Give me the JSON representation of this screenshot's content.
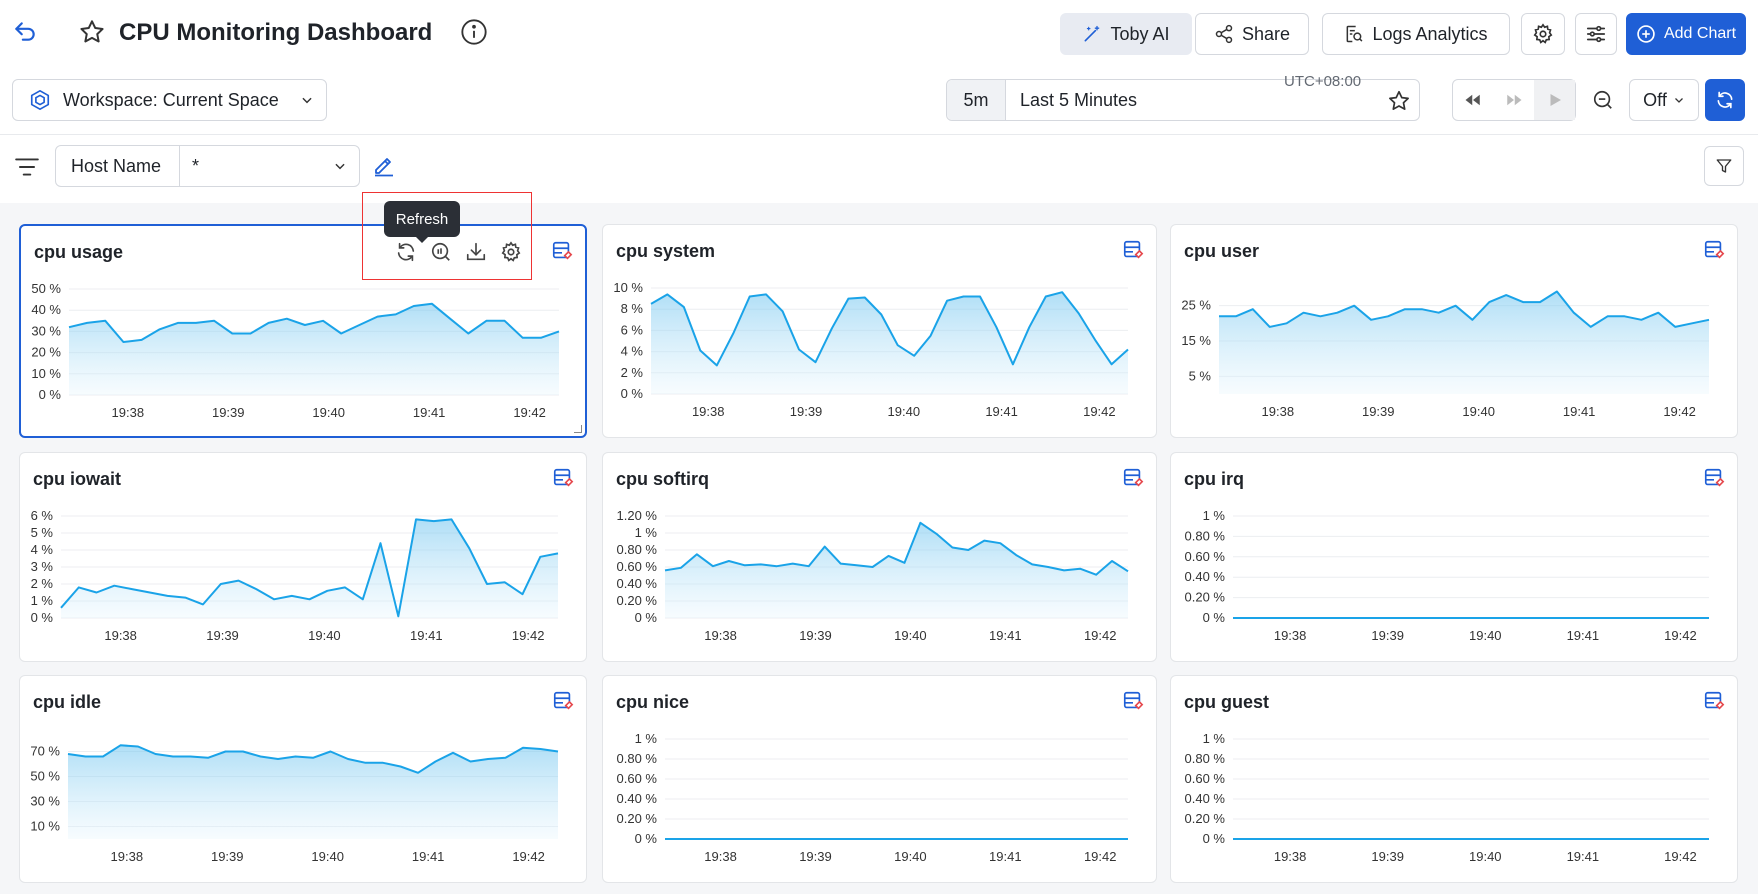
{
  "header": {
    "title": "CPU Monitoring Dashboard",
    "toby_label": "Toby AI",
    "share_label": "Share",
    "logs_label": "Logs Analytics",
    "add_chart_label": "Add Chart"
  },
  "toolbar": {
    "workspace_label": "Workspace: Current Space",
    "time_short": "5m",
    "time_label": "Last 5 Minutes",
    "timezone": "UTC+08:00",
    "auto_refresh": "Off"
  },
  "filter": {
    "field_label": "Host Name",
    "field_value": "*"
  },
  "tooltip": "Refresh",
  "colors": {
    "accent": "#1f5fd6",
    "line": "#1aa3e8",
    "highlight_box": "#e33333"
  },
  "x_ticks": [
    "19:38",
    "19:39",
    "19:40",
    "19:41",
    "19:42"
  ],
  "chart_data": [
    {
      "type": "area",
      "title": "cpu usage",
      "yticks": [
        "50 %",
        "40 %",
        "30 %",
        "20 %",
        "10 %",
        "0 %"
      ],
      "ylim": [
        0,
        50
      ],
      "values": [
        32,
        34,
        35,
        25,
        26,
        31,
        34,
        34,
        35,
        29,
        29,
        34,
        36,
        33,
        35,
        29,
        33,
        37,
        38,
        42,
        43,
        36,
        29,
        35,
        35,
        27,
        27,
        30
      ]
    },
    {
      "type": "area",
      "title": "cpu system",
      "yticks": [
        "10 %",
        "8 %",
        "6 %",
        "4 %",
        "2 %",
        "0 %"
      ],
      "ylim": [
        0,
        10
      ],
      "values": [
        8.5,
        9.4,
        8.2,
        4.1,
        2.7,
        5.7,
        9.2,
        9.4,
        7.8,
        4.2,
        3.0,
        6.2,
        9.0,
        9.1,
        7.5,
        4.6,
        3.6,
        5.5,
        8.8,
        9.2,
        9.2,
        6.3,
        2.8,
        6.3,
        9.2,
        9.6,
        7.6,
        5.1,
        2.8,
        4.2
      ]
    },
    {
      "type": "area",
      "title": "cpu user",
      "yticks": [
        "25 %",
        "15 %",
        "5 %"
      ],
      "ylim": [
        0,
        30
      ],
      "values": [
        22,
        22,
        24,
        19,
        20,
        23,
        22,
        23,
        25,
        21,
        22,
        24,
        24,
        23,
        25,
        21,
        26,
        28,
        26,
        26,
        29,
        23,
        19,
        22,
        22,
        21,
        23,
        19,
        20,
        21
      ]
    },
    {
      "type": "area",
      "title": "cpu iowait",
      "yticks": [
        "6 %",
        "5 %",
        "4 %",
        "3 %",
        "2 %",
        "1 %",
        "0 %"
      ],
      "ylim": [
        0,
        6
      ],
      "values": [
        0.6,
        1.8,
        1.5,
        1.9,
        1.7,
        1.5,
        1.3,
        1.2,
        0.8,
        2.0,
        2.2,
        1.7,
        1.1,
        1.3,
        1.1,
        1.6,
        1.8,
        1.1,
        4.4,
        0.1,
        5.8,
        5.7,
        5.8,
        4.1,
        2.0,
        2.1,
        1.4,
        3.6,
        3.8
      ]
    },
    {
      "type": "area",
      "title": "cpu softirq",
      "yticks": [
        "1.20 %",
        "1 %",
        "0.80 %",
        "0.60 %",
        "0.40 %",
        "0.20 %",
        "0 %"
      ],
      "ylim": [
        0,
        1.2
      ],
      "values": [
        0.56,
        0.59,
        0.75,
        0.61,
        0.67,
        0.62,
        0.63,
        0.61,
        0.64,
        0.61,
        0.84,
        0.64,
        0.62,
        0.6,
        0.73,
        0.65,
        1.12,
        0.99,
        0.83,
        0.8,
        0.91,
        0.88,
        0.74,
        0.63,
        0.6,
        0.56,
        0.58,
        0.51,
        0.67,
        0.55
      ]
    },
    {
      "type": "line",
      "title": "cpu irq",
      "yticks": [
        "1 %",
        "0.80 %",
        "0.60 %",
        "0.40 %",
        "0.20 %",
        "0 %"
      ],
      "ylim": [
        0,
        1
      ],
      "values": [
        0,
        0,
        0,
        0,
        0,
        0,
        0,
        0,
        0,
        0,
        0,
        0,
        0,
        0,
        0,
        0,
        0,
        0,
        0,
        0,
        0,
        0,
        0,
        0,
        0,
        0,
        0,
        0,
        0,
        0
      ]
    },
    {
      "type": "area",
      "title": "cpu idle",
      "yticks": [
        "70 %",
        "50 %",
        "30 %",
        "10 %"
      ],
      "ylim": [
        0,
        80
      ],
      "values": [
        68,
        66,
        66,
        75,
        74,
        68,
        66,
        66,
        65,
        70,
        70,
        66,
        64,
        66,
        65,
        70,
        64,
        61,
        61,
        58,
        53,
        62,
        69,
        62,
        64,
        65,
        73,
        72,
        70
      ]
    },
    {
      "type": "line",
      "title": "cpu nice",
      "yticks": [
        "1 %",
        "0.80 %",
        "0.60 %",
        "0.40 %",
        "0.20 %",
        "0 %"
      ],
      "ylim": [
        0,
        1
      ],
      "values": [
        0,
        0,
        0,
        0,
        0,
        0,
        0,
        0,
        0,
        0,
        0,
        0,
        0,
        0,
        0,
        0,
        0,
        0,
        0,
        0,
        0,
        0,
        0,
        0,
        0,
        0,
        0,
        0,
        0,
        0
      ]
    },
    {
      "type": "line",
      "title": "cpu guest",
      "yticks": [
        "1 %",
        "0.80 %",
        "0.60 %",
        "0.40 %",
        "0.20 %",
        "0 %"
      ],
      "ylim": [
        0,
        1
      ],
      "values": [
        0,
        0,
        0,
        0,
        0,
        0,
        0,
        0,
        0,
        0,
        0,
        0,
        0,
        0,
        0,
        0,
        0,
        0,
        0,
        0,
        0,
        0,
        0,
        0,
        0,
        0,
        0,
        0,
        0,
        0
      ]
    }
  ]
}
